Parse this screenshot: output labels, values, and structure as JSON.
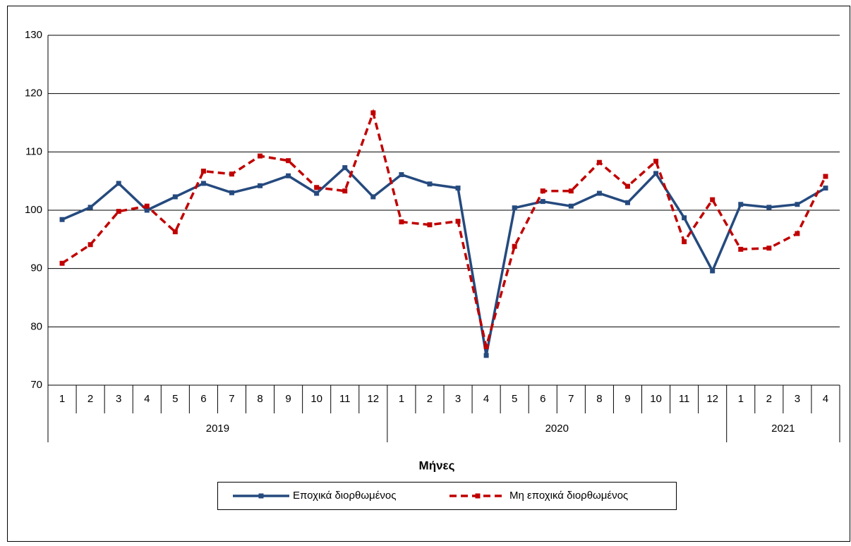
{
  "chart_data": {
    "type": "line",
    "x_label": "Μήνες",
    "groups": [
      {
        "label": "2019",
        "categories": [
          "1",
          "2",
          "3",
          "4",
          "5",
          "6",
          "7",
          "8",
          "9",
          "10",
          "11",
          "12"
        ]
      },
      {
        "label": "2020",
        "categories": [
          "1",
          "2",
          "3",
          "4",
          "5",
          "6",
          "7",
          "8",
          "9",
          "10",
          "11",
          "12"
        ]
      },
      {
        "label": "2021",
        "categories": [
          "1",
          "2",
          "3",
          "4"
        ]
      }
    ],
    "series": [
      {
        "name": "Εποχικά διορθωμένος",
        "color": "#254a7e",
        "dashed": false,
        "values": [
          98.4,
          100.5,
          104.6,
          100.0,
          102.3,
          104.6,
          103.0,
          104.2,
          105.9,
          102.9,
          107.3,
          102.3,
          106.1,
          104.5,
          103.8,
          75.1,
          100.4,
          101.5,
          100.7,
          102.9,
          101.3,
          106.3,
          98.7,
          89.6,
          101.0,
          100.5,
          101.0,
          103.8
        ]
      },
      {
        "name": "Μη εποχικά διορθωμένος",
        "color": "#c00000",
        "dashed": true,
        "values": [
          90.9,
          94.1,
          99.8,
          100.7,
          96.3,
          106.7,
          106.2,
          109.3,
          108.5,
          103.9,
          103.3,
          116.7,
          98.0,
          97.5,
          98.1,
          76.6,
          93.8,
          103.3,
          103.3,
          108.2,
          104.1,
          108.4,
          94.6,
          101.8,
          93.3,
          93.5,
          96.0,
          105.8
        ]
      }
    ],
    "ylim": [
      70,
      130
    ],
    "yticks": [
      70,
      80,
      90,
      100,
      110,
      120,
      130
    ],
    "grid": true
  }
}
